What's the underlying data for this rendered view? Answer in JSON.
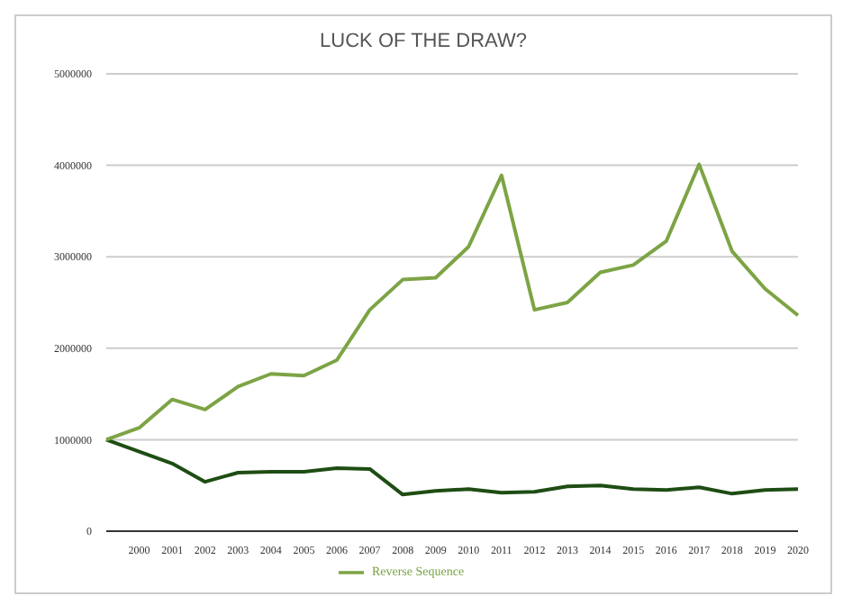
{
  "chart_data": {
    "type": "line",
    "title": "LUCK OF THE DRAW?",
    "categories": [
      null,
      "2000",
      "2001",
      "2002",
      "2003",
      "2004",
      "2005",
      "2006",
      "2007",
      "2008",
      "2009",
      "2010",
      "2011",
      "2012",
      "2013",
      "2014",
      "2015",
      "2016",
      "2017",
      "2018",
      "2019",
      "2020"
    ],
    "series": [
      {
        "color": "#1e4d14",
        "values": [
          1000000,
          870000,
          740000,
          540000,
          640000,
          650000,
          650000,
          690000,
          680000,
          400000,
          440000,
          460000,
          420000,
          430000,
          490000,
          500000,
          460000,
          450000,
          480000,
          410000,
          450000,
          460000
        ]
      },
      {
        "name": "Reverse Sequence",
        "color": "#7ca445",
        "values": [
          1000000,
          1130000,
          1440000,
          1330000,
          1580000,
          1720000,
          1700000,
          1870000,
          2420000,
          2750000,
          2770000,
          3110000,
          3890000,
          2420000,
          2500000,
          2830000,
          2910000,
          3170000,
          4010000,
          3060000,
          2650000,
          2360000
        ]
      }
    ],
    "ylim": [
      0,
      5000000
    ],
    "yticks": [
      0,
      1000000,
      2000000,
      3000000,
      4000000,
      5000000
    ],
    "grid": "y",
    "legend": "bottom",
    "marker": "none"
  }
}
